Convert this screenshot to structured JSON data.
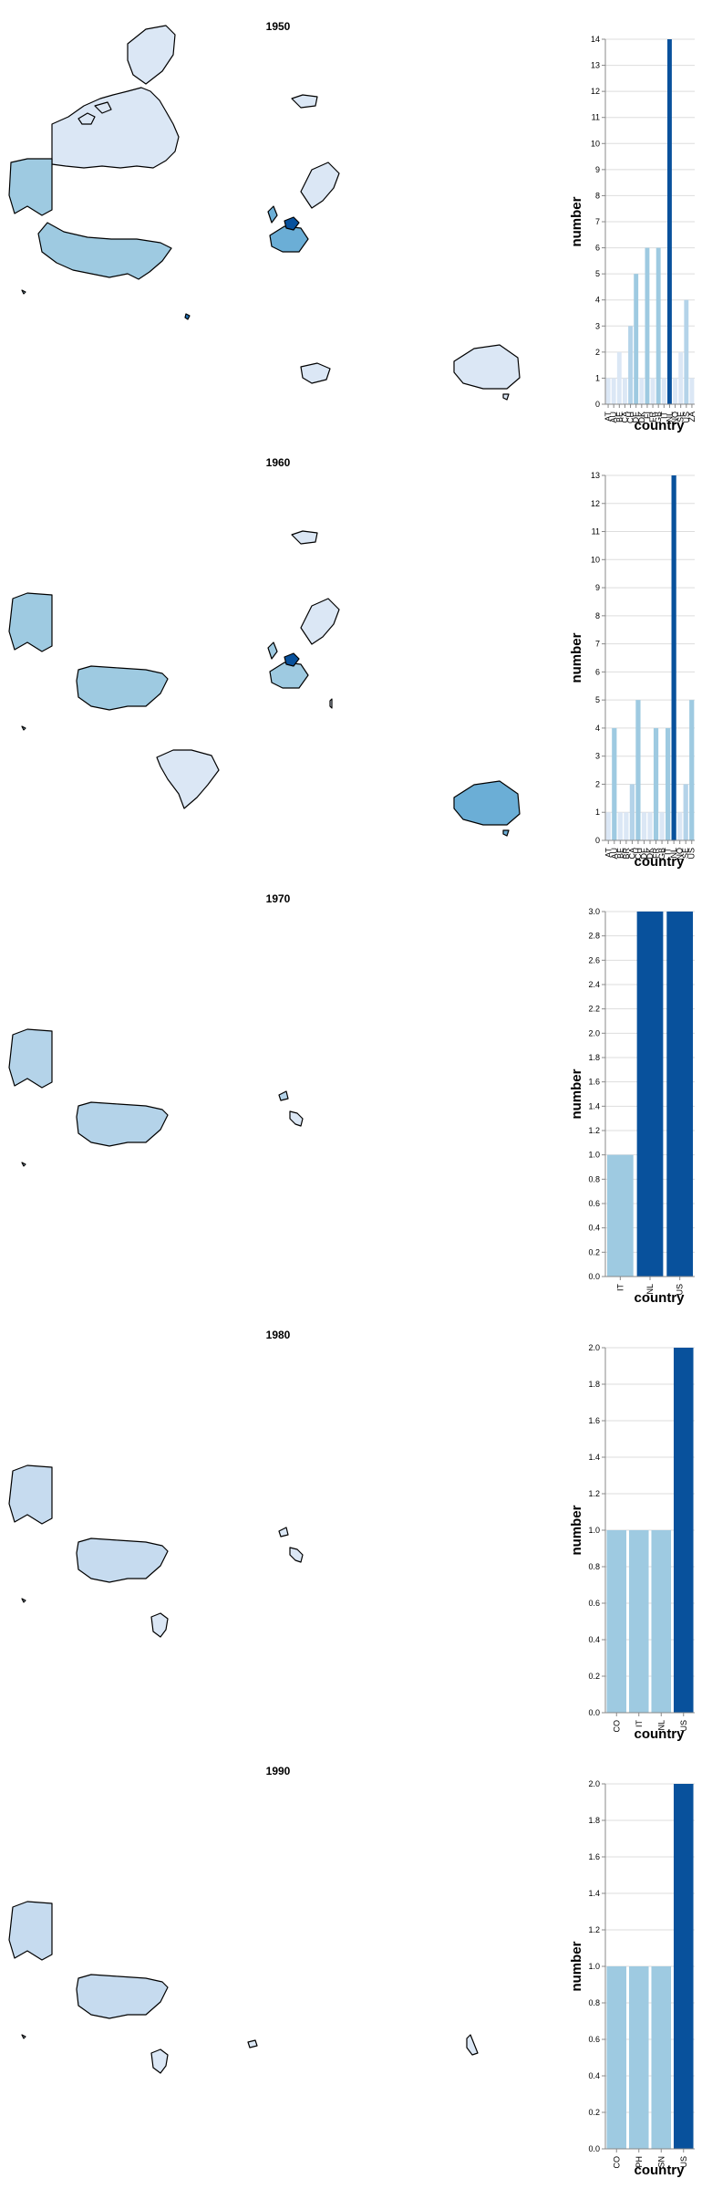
{
  "panels": [
    {
      "year": "1950"
    },
    {
      "year": "1960"
    },
    {
      "year": "1970"
    },
    {
      "year": "1980"
    },
    {
      "year": "1990"
    }
  ],
  "colors": {
    "lightest": "#dbe7f5",
    "light": "#c6dbef",
    "mid_light": "#b4d3e9",
    "mid": "#9ecae1",
    "mid_dark": "#6baed6",
    "dark": "#2171b5",
    "darkest": "#08519c"
  },
  "chart_data": [
    {
      "type": "bar",
      "title": "1950",
      "xlabel": "country",
      "ylabel": "number",
      "ylim": [
        0,
        14
      ],
      "yticks": [
        0,
        1,
        2,
        3,
        4,
        5,
        6,
        7,
        8,
        9,
        10,
        11,
        12,
        13,
        14
      ],
      "categories": [
        "AT",
        "AU",
        "BE",
        "CA",
        "CH",
        "DE",
        "DK",
        "FI",
        "FR",
        "GB",
        "IT",
        "NL",
        "NO",
        "SE",
        "US",
        "ZA"
      ],
      "values": [
        1,
        1,
        2,
        1,
        3,
        5,
        1,
        6,
        1,
        6,
        1,
        14,
        1,
        2,
        4,
        1
      ],
      "grid": true,
      "legend": "none"
    },
    {
      "type": "bar",
      "title": "1960",
      "xlabel": "country",
      "ylabel": "number",
      "ylim": [
        0,
        13
      ],
      "yticks": [
        0,
        1,
        2,
        3,
        4,
        5,
        6,
        7,
        8,
        9,
        10,
        11,
        12,
        13
      ],
      "categories": [
        "AT",
        "AU",
        "BE",
        "BR",
        "CA",
        "CH",
        "DE",
        "DK",
        "FR",
        "GB",
        "IT",
        "NL",
        "NO",
        "SE",
        "US"
      ],
      "values": [
        1,
        4,
        1,
        1,
        2,
        5,
        1,
        1,
        4,
        1,
        4,
        13,
        1,
        2,
        5
      ],
      "grid": true,
      "legend": "none"
    },
    {
      "type": "bar",
      "title": "1970",
      "xlabel": "country",
      "ylabel": "number",
      "ylim": [
        0,
        3
      ],
      "yticks": [
        "0.0",
        "0.2",
        "0.4",
        "0.6",
        "0.8",
        "1.0",
        "1.2",
        "1.4",
        "1.6",
        "1.8",
        "2.0",
        "2.2",
        "2.4",
        "2.6",
        "2.8",
        "3.0"
      ],
      "categories": [
        "IT",
        "NL",
        "US"
      ],
      "values": [
        1,
        3,
        3
      ],
      "grid": true,
      "legend": "none"
    },
    {
      "type": "bar",
      "title": "1980",
      "xlabel": "country",
      "ylabel": "number",
      "ylim": [
        0,
        2
      ],
      "yticks": [
        "0.0",
        "0.2",
        "0.4",
        "0.6",
        "0.8",
        "1.0",
        "1.2",
        "1.4",
        "1.6",
        "1.8",
        "2.0"
      ],
      "categories": [
        "CO",
        "IT",
        "NL",
        "US"
      ],
      "values": [
        1,
        1,
        1,
        2
      ],
      "grid": true,
      "legend": "none"
    },
    {
      "type": "bar",
      "title": "1990",
      "xlabel": "country",
      "ylabel": "number",
      "ylim": [
        0,
        2
      ],
      "yticks": [
        "0.0",
        "0.2",
        "0.4",
        "0.6",
        "0.8",
        "1.0",
        "1.2",
        "1.4",
        "1.6",
        "1.8",
        "2.0"
      ],
      "categories": [
        "CO",
        "PH",
        "SN",
        "US"
      ],
      "values": [
        1,
        1,
        1,
        2
      ],
      "grid": true,
      "legend": "none"
    }
  ]
}
